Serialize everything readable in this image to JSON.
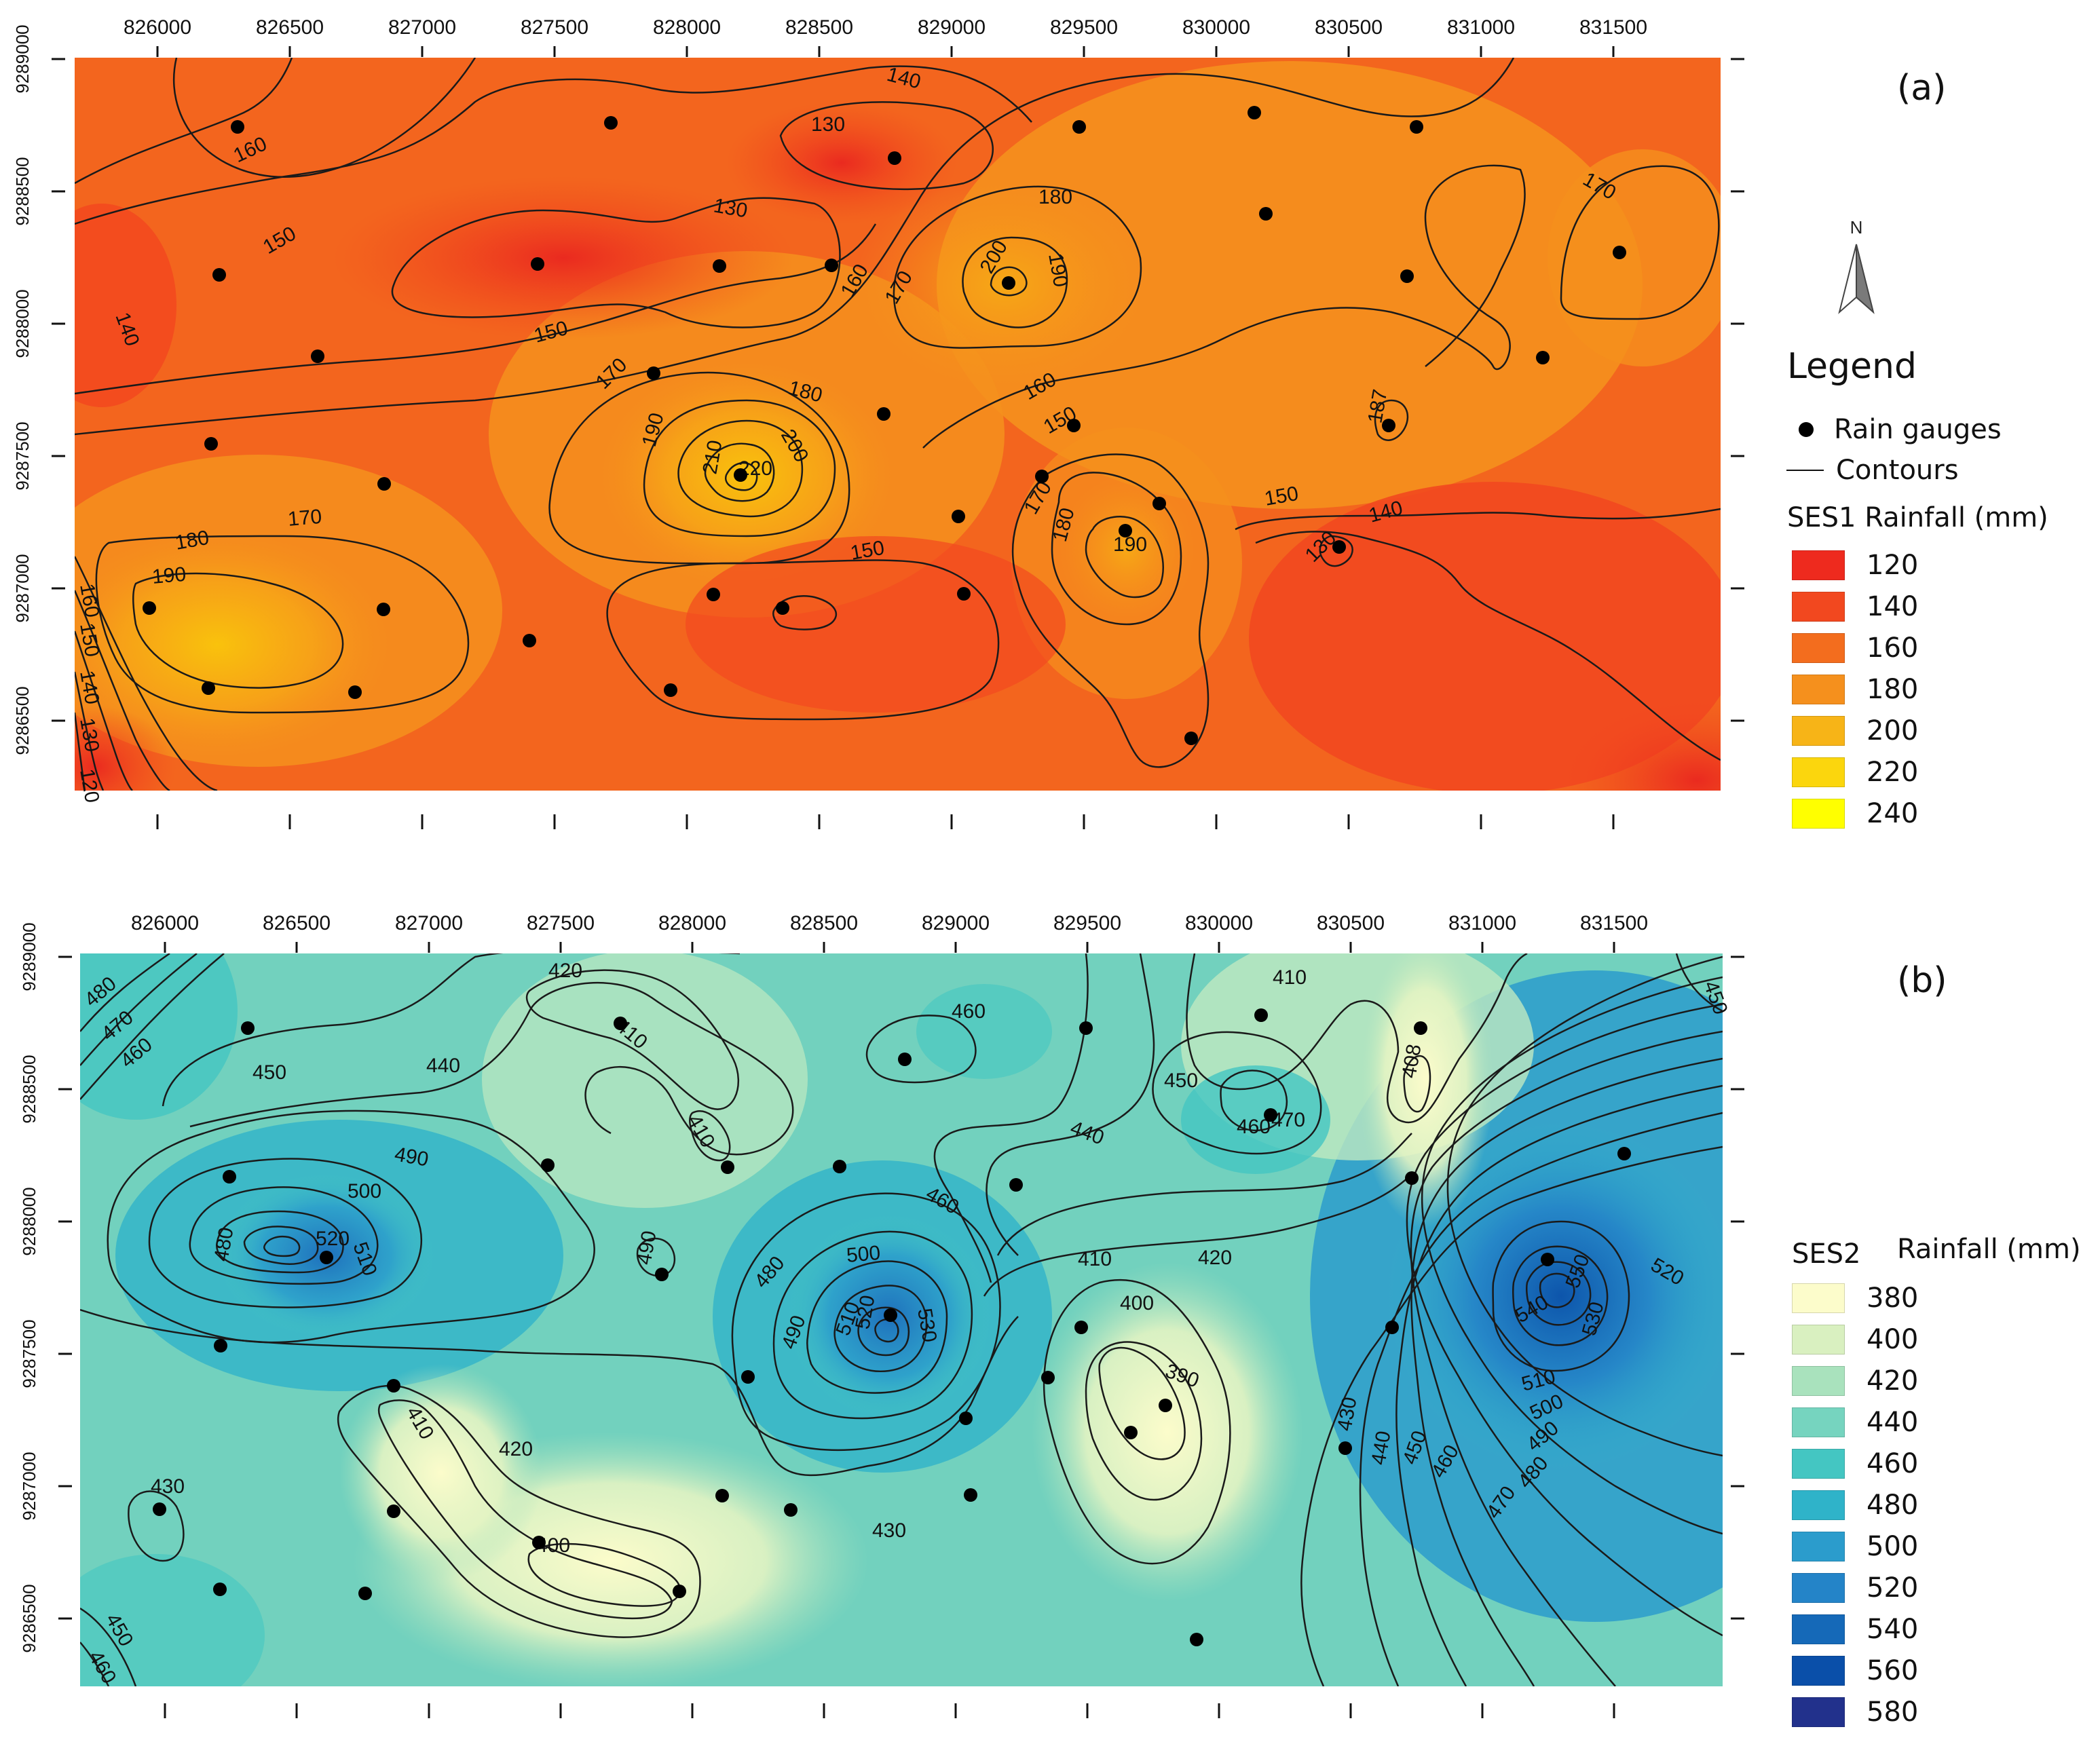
{
  "map_a": {
    "panel_label": "(a)",
    "x_ticks": [
      "826000",
      "826500",
      "827000",
      "827500",
      "828000",
      "828500",
      "829000",
      "829500",
      "830000",
      "830500",
      "831000",
      "831500"
    ],
    "y_ticks": [
      "9289000",
      "9288500",
      "9288000",
      "9287500",
      "9287000",
      "9286500"
    ],
    "contour_labels": [
      "140",
      "130",
      "160",
      "150",
      "130",
      "140",
      "150",
      "180",
      "200",
      "190",
      "160",
      "170",
      "170",
      "180",
      "190",
      "210",
      "220",
      "200",
      "160",
      "150",
      "150",
      "140",
      "170",
      "180",
      "190",
      "180",
      "170",
      "160",
      "150",
      "140",
      "130",
      "120",
      "150",
      "130",
      "140",
      "190",
      "170",
      "180",
      "190",
      "187"
    ],
    "legend": {
      "title": "Legend",
      "items": [
        {
          "symbol": "rain-gauge-dot",
          "label": "Rain gauges"
        },
        {
          "symbol": "contour-line",
          "label": "Contours"
        }
      ],
      "scale_title": "SES1 Rainfall (mm)",
      "scale": [
        {
          "value": "120",
          "color": "#ee2a1e"
        },
        {
          "value": "140",
          "color": "#f2481f"
        },
        {
          "value": "160",
          "color": "#f36d1e"
        },
        {
          "value": "180",
          "color": "#f5901d"
        },
        {
          "value": "200",
          "color": "#f7b417"
        },
        {
          "value": "220",
          "color": "#fbd60d"
        },
        {
          "value": "240",
          "color": "#ffff00"
        }
      ],
      "north": "N"
    }
  },
  "map_b": {
    "panel_label": "(b)",
    "x_ticks": [
      "826000",
      "826500",
      "827000",
      "827500",
      "828000",
      "828500",
      "829000",
      "829500",
      "830000",
      "830500",
      "831000",
      "831500"
    ],
    "y_ticks": [
      "9289000",
      "9288500",
      "9288000",
      "9287500",
      "9287000",
      "9286500"
    ],
    "contour_labels": [
      "480",
      "470",
      "460",
      "420",
      "410",
      "460",
      "450",
      "440",
      "450",
      "410",
      "410",
      "470",
      "490",
      "500",
      "520",
      "510",
      "480",
      "490",
      "500",
      "510",
      "520",
      "530",
      "480",
      "490",
      "460",
      "440",
      "410",
      "420",
      "400",
      "390",
      "470",
      "460",
      "430",
      "440",
      "450",
      "460",
      "470",
      "480",
      "490",
      "500",
      "510",
      "520",
      "530",
      "540",
      "550",
      "450",
      "410",
      "420",
      "400",
      "430",
      "430",
      "450",
      "460",
      "410",
      "450",
      "408"
    ],
    "legend": {
      "scale_title_a": "SES2",
      "scale_title_b": "Rainfall (mm)",
      "scale": [
        {
          "value": "380",
          "color": "#fcfccb"
        },
        {
          "value": "400",
          "color": "#d9f0c0"
        },
        {
          "value": "420",
          "color": "#a9e2bd"
        },
        {
          "value": "440",
          "color": "#76d4bf"
        },
        {
          "value": "460",
          "color": "#44c6c2"
        },
        {
          "value": "480",
          "color": "#2fb3c9"
        },
        {
          "value": "500",
          "color": "#2b9ccc"
        },
        {
          "value": "520",
          "color": "#2484c8"
        },
        {
          "value": "540",
          "color": "#1569b8"
        },
        {
          "value": "560",
          "color": "#0a4fa9"
        },
        {
          "value": "580",
          "color": "#22318c"
        }
      ]
    }
  }
}
